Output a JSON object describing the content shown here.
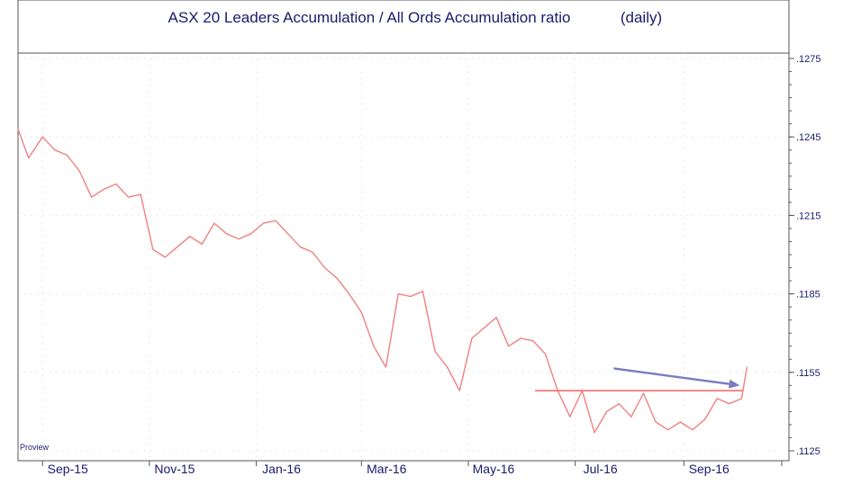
{
  "chart_data": {
    "type": "line",
    "title": "ASX 20 Leaders Accumulation / All Ords Accumulation ratio",
    "subtitle": "(daily)",
    "watermark": "Proview",
    "x": [
      "2015-08-18",
      "2015-08-24",
      "2015-09-01",
      "2015-09-08",
      "2015-09-15",
      "2015-09-22",
      "2015-09-29",
      "2015-10-06",
      "2015-10-13",
      "2015-10-20",
      "2015-10-27",
      "2015-11-03",
      "2015-11-10",
      "2015-11-17",
      "2015-11-24",
      "2015-12-01",
      "2015-12-08",
      "2015-12-15",
      "2015-12-22",
      "2015-12-29",
      "2016-01-05",
      "2016-01-12",
      "2016-01-19",
      "2016-01-26",
      "2016-02-02",
      "2016-02-09",
      "2016-02-16",
      "2016-02-23",
      "2016-03-01",
      "2016-03-08",
      "2016-03-15",
      "2016-03-22",
      "2016-03-29",
      "2016-04-05",
      "2016-04-12",
      "2016-04-19",
      "2016-04-26",
      "2016-05-03",
      "2016-05-10",
      "2016-05-17",
      "2016-05-24",
      "2016-05-31",
      "2016-06-07",
      "2016-06-14",
      "2016-06-21",
      "2016-06-28",
      "2016-07-05",
      "2016-07-12",
      "2016-07-19",
      "2016-07-26",
      "2016-08-02",
      "2016-08-09",
      "2016-08-16",
      "2016-08-23",
      "2016-08-30",
      "2016-09-06",
      "2016-09-13",
      "2016-09-20",
      "2016-09-27",
      "2016-10-04",
      "2016-10-07"
    ],
    "series": [
      {
        "values": [
          0.1248,
          0.1237,
          0.1245,
          0.124,
          0.1238,
          0.1232,
          0.1222,
          0.1225,
          0.1227,
          0.1222,
          0.1223,
          0.1202,
          0.1199,
          0.1203,
          0.1207,
          0.1204,
          0.1212,
          0.1208,
          0.1206,
          0.1208,
          0.1212,
          0.1213,
          0.1208,
          0.1203,
          0.1201,
          0.1195,
          0.1191,
          0.1185,
          0.1178,
          0.1165,
          0.1157,
          0.1185,
          0.1184,
          0.1186,
          0.1163,
          0.1157,
          0.1148,
          0.1168,
          0.1172,
          0.1176,
          0.1165,
          0.1168,
          0.1167,
          0.1162,
          0.1148,
          0.1138,
          0.1148,
          0.1132,
          0.114,
          0.1143,
          0.1138,
          0.1147,
          0.1136,
          0.1133,
          0.1136,
          0.1133,
          0.1137,
          0.1145,
          0.1143,
          0.1145,
          0.1157
        ]
      }
    ],
    "hline": {
      "y": 0.1148,
      "x_start": "2016-06-08",
      "x_end": "2016-10-05"
    },
    "arrow": {
      "from": {
        "x": "2016-07-23",
        "y": 0.11565
      },
      "to": {
        "x": "2016-10-03",
        "y": 0.115
      }
    },
    "x_ticks": [
      "Sep-15",
      "Nov-15",
      "Jan-16",
      "Mar-16",
      "May-16",
      "Jul-16",
      "Sep-16"
    ],
    "x_tick_dates": [
      "2015-09-01",
      "2015-11-01",
      "2016-01-01",
      "2016-03-01",
      "2016-05-01",
      "2016-07-01",
      "2016-09-01"
    ],
    "y_ticks": [
      ".1275",
      ".1245",
      ".1215",
      ".1185",
      ".1155",
      ".1125"
    ],
    "y_tick_values": [
      0.1275,
      0.1245,
      0.1215,
      0.1185,
      0.1155,
      0.1125
    ],
    "xlim": [
      "2015-08-18",
      "2016-10-31"
    ],
    "ylim": [
      0.1125,
      0.1275
    ],
    "grid": true,
    "colors": {
      "line": "#f08080",
      "hline": "#f07070",
      "arrow": "#7b7bc0",
      "text": "#1a1a6e",
      "grid": "#d8d8d8",
      "frame": "#555555"
    }
  }
}
